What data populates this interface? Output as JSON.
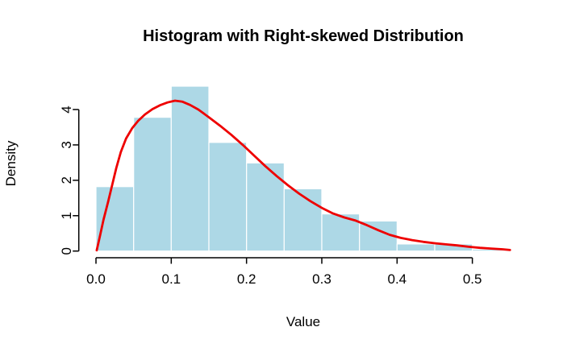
{
  "title": "Histogram with Right-skewed Distribution",
  "chart_data": {
    "type": "bar",
    "subtype": "histogram-with-density-curve",
    "title": "Histogram with Right-skewed Distribution",
    "xlabel": "Value",
    "ylabel": "Density",
    "xlim": [
      -0.022,
      0.572
    ],
    "ylim": [
      -0.19,
      4.84
    ],
    "grid": "off",
    "legend": "none",
    "bin_width": 0.05,
    "bin_breaks": [
      0.0,
      0.05,
      0.1,
      0.15,
      0.2,
      0.25,
      0.3,
      0.35,
      0.4,
      0.45,
      0.5,
      0.55
    ],
    "bin_densities": [
      1.82,
      3.78,
      4.66,
      3.07,
      2.49,
      1.76,
      1.05,
      0.85,
      0.2,
      0.2,
      0.05
    ],
    "density_curve": {
      "x": [
        0.001,
        0.005,
        0.01,
        0.016,
        0.021,
        0.027,
        0.033,
        0.04,
        0.048,
        0.056,
        0.065,
        0.075,
        0.085,
        0.095,
        0.105,
        0.115,
        0.125,
        0.136,
        0.15,
        0.165,
        0.18,
        0.195,
        0.21,
        0.225,
        0.24,
        0.255,
        0.27,
        0.285,
        0.3,
        0.315,
        0.33,
        0.345,
        0.36,
        0.375,
        0.39,
        0.405,
        0.42,
        0.435,
        0.45,
        0.465,
        0.48,
        0.495,
        0.51,
        0.525,
        0.54,
        0.55
      ],
      "y": [
        0.02,
        0.4,
        0.88,
        1.38,
        1.82,
        2.35,
        2.8,
        3.18,
        3.47,
        3.68,
        3.86,
        4.01,
        4.12,
        4.2,
        4.25,
        4.22,
        4.13,
        4.0,
        3.78,
        3.54,
        3.28,
        3.0,
        2.7,
        2.4,
        2.12,
        1.86,
        1.62,
        1.41,
        1.22,
        1.06,
        0.95,
        0.86,
        0.73,
        0.59,
        0.46,
        0.37,
        0.31,
        0.26,
        0.22,
        0.19,
        0.16,
        0.12,
        0.09,
        0.07,
        0.05,
        0.03
      ]
    },
    "x_ticks": [
      {
        "v": 0.0,
        "label": "0.0"
      },
      {
        "v": 0.1,
        "label": "0.1"
      },
      {
        "v": 0.2,
        "label": "0.2"
      },
      {
        "v": 0.3,
        "label": "0.3"
      },
      {
        "v": 0.4,
        "label": "0.4"
      },
      {
        "v": 0.5,
        "label": "0.5"
      }
    ],
    "y_ticks": [
      {
        "v": 0,
        "label": "0"
      },
      {
        "v": 1,
        "label": "1"
      },
      {
        "v": 2,
        "label": "2"
      },
      {
        "v": 3,
        "label": "3"
      },
      {
        "v": 4,
        "label": "4"
      }
    ],
    "colors": {
      "bar_fill": "#ADD8E6",
      "bar_border": "#FFFFFF",
      "curve": "#EE0000",
      "axis": "#000000",
      "text": "#000000",
      "background": "#FFFFFF"
    }
  }
}
